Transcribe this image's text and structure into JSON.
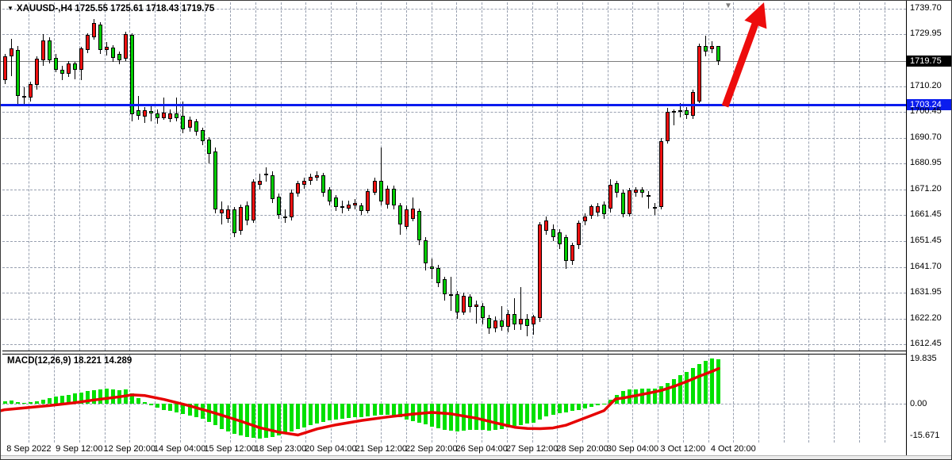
{
  "title": {
    "symbol_period": "XAUUSD-,H4",
    "ohlc": "1725.55 1725.61 1718.43 1719.75",
    "dropdown_icon": "symbol-dropdown"
  },
  "indicator": {
    "label": "MACD(12,26,9)",
    "values": "18.221 14.289"
  },
  "price_axis": {
    "current_tag": "1719.75",
    "support_tag": "1703.24",
    "ticks": [
      {
        "text": "1739.70",
        "value": 1739.7
      },
      {
        "text": "1729.95",
        "value": 1729.95
      },
      {
        "text": "1710.20",
        "value": 1710.2
      },
      {
        "text": "1700.45",
        "value": 1700.45
      },
      {
        "text": "1690.70",
        "value": 1690.7
      },
      {
        "text": "1680.95",
        "value": 1680.95
      },
      {
        "text": "1671.20",
        "value": 1671.2
      },
      {
        "text": "1661.45",
        "value": 1661.45
      },
      {
        "text": "1651.45",
        "value": 1651.45
      },
      {
        "text": "1641.70",
        "value": 1641.7
      },
      {
        "text": "1631.95",
        "value": 1631.95
      },
      {
        "text": "1622.20",
        "value": 1622.2
      },
      {
        "text": "1612.45",
        "value": 1612.45
      }
    ]
  },
  "macd_axis": {
    "ticks": [
      {
        "text": "19.835",
        "value": 19.835
      },
      {
        "text": "0.00",
        "value": 0
      },
      {
        "text": "-15.671",
        "value": -15.671
      }
    ]
  },
  "time_axis": {
    "labels": [
      "8 Sep 2022",
      "9 Sep 12:00",
      "12 Sep 20:00",
      "14 Sep 04:00",
      "15 Sep 12:00",
      "18 Sep 23:00",
      "20 Sep 04:00",
      "21 Sep 12:00",
      "22 Sep 20:00",
      "26 Sep 04:00",
      "27 Sep 12:00",
      "28 Sep 20:00",
      "30 Sep 04:00",
      "3 Oct 12:00",
      "4 Oct 20:00"
    ]
  },
  "colors": {
    "bull_candle": "#ee1111",
    "bear_candle": "#00cc00",
    "wick": "#000000",
    "macd_bar": "#00e000",
    "signal_line": "#e60000",
    "arrow": "#ed0c0c",
    "support_line": "#0a1cee",
    "current_price_line": "#7d7d7d",
    "grid": "#98a0b0",
    "background": "#ffffff",
    "current_tag_bg": "#000000",
    "support_tag_bg": "#0a1cee"
  },
  "chart_data": {
    "type": "candlestick",
    "symbol": "XAUUSD",
    "timeframe": "H4",
    "current_ohlc": {
      "open": 1725.55,
      "high": 1725.61,
      "low": 1718.43,
      "close": 1719.75
    },
    "current_price": 1719.75,
    "support_line_price": 1703.24,
    "ylim": [
      1611.0,
      1742.5
    ],
    "x_ticks": [
      "8 Sep 2022",
      "9 Sep 12:00",
      "12 Sep 20:00",
      "14 Sep 04:00",
      "15 Sep 12:00",
      "18 Sep 23:00",
      "20 Sep 04:00",
      "21 Sep 12:00",
      "22 Sep 20:00",
      "26 Sep 04:00",
      "27 Sep 12:00",
      "28 Sep 20:00",
      "30 Sep 04:00",
      "3 Oct 12:00",
      "4 Oct 20:00"
    ],
    "annotations": {
      "arrow": "large red bullish projection arrow from support line toward upper-right",
      "marker": "gray chart-shift triangle at top"
    },
    "candles": [
      [
        1712.6,
        1722.6,
        1711.0,
        1721.7
      ],
      [
        1721.7,
        1728.2,
        1714.0,
        1724.7
      ],
      [
        1724.1,
        1725.5,
        1703.6,
        1706.6
      ],
      [
        1706.6,
        1710.0,
        1703.6,
        1706.0
      ],
      [
        1706.0,
        1712.0,
        1704.5,
        1711.1
      ],
      [
        1710.9,
        1721.5,
        1709.0,
        1720.7
      ],
      [
        1720.0,
        1730.0,
        1718.0,
        1727.7
      ],
      [
        1727.7,
        1729.0,
        1719.0,
        1720.1
      ],
      [
        1721.0,
        1722.5,
        1715.5,
        1716.5
      ],
      [
        1716.5,
        1718.0,
        1712.5,
        1715.0
      ],
      [
        1715.0,
        1719.8,
        1713.8,
        1719.0
      ],
      [
        1719.0,
        1719.5,
        1713.0,
        1716.5
      ],
      [
        1716.5,
        1725.3,
        1712.6,
        1724.7
      ],
      [
        1724.0,
        1730.5,
        1723.0,
        1729.8
      ],
      [
        1729.0,
        1735.8,
        1728.0,
        1734.3
      ],
      [
        1733.7,
        1734.5,
        1722.5,
        1724.1
      ],
      [
        1724.1,
        1727.0,
        1722.0,
        1725.2
      ],
      [
        1725.0,
        1726.0,
        1719.5,
        1721.1
      ],
      [
        1722.5,
        1723.5,
        1718.5,
        1720.2
      ],
      [
        1720.7,
        1731.0,
        1719.7,
        1730.1
      ],
      [
        1729.8,
        1730.3,
        1697.0,
        1699.7
      ],
      [
        1701.2,
        1706.6,
        1697.5,
        1699.1
      ],
      [
        1698.8,
        1702.5,
        1696.5,
        1701.2
      ],
      [
        1700.8,
        1703.0,
        1697.0,
        1699.9
      ],
      [
        1699.9,
        1701.5,
        1696.0,
        1698.3
      ],
      [
        1698.3,
        1706.1,
        1697.5,
        1700.4
      ],
      [
        1698.0,
        1701.5,
        1696.8,
        1700.0
      ],
      [
        1700.0,
        1705.9,
        1697.0,
        1698.2
      ],
      [
        1699.0,
        1704.6,
        1692.5,
        1694.0
      ],
      [
        1694.6,
        1698.8,
        1693.0,
        1697.6
      ],
      [
        1697.0,
        1698.0,
        1691.5,
        1693.1
      ],
      [
        1693.7,
        1694.5,
        1688.0,
        1689.5
      ],
      [
        1690.1,
        1691.0,
        1681.0,
        1684.6
      ],
      [
        1685.5,
        1687.0,
        1662.0,
        1663.6
      ],
      [
        1662.1,
        1666.5,
        1657.9,
        1663.6
      ],
      [
        1660.0,
        1665.0,
        1658.5,
        1663.5
      ],
      [
        1663.5,
        1664.5,
        1653.1,
        1654.5
      ],
      [
        1655.5,
        1665.5,
        1654.0,
        1664.5
      ],
      [
        1665.0,
        1666.5,
        1657.5,
        1659.5
      ],
      [
        1659.5,
        1675.0,
        1658.5,
        1674.0
      ],
      [
        1673.0,
        1677.0,
        1671.0,
        1674.5
      ],
      [
        1676.5,
        1679.5,
        1674.0,
        1677.0
      ],
      [
        1676.5,
        1678.0,
        1666.0,
        1667.5
      ],
      [
        1668.5,
        1669.5,
        1660.0,
        1661.5
      ],
      [
        1661.0,
        1663.5,
        1658.5,
        1660.5
      ],
      [
        1660.5,
        1671.0,
        1659.5,
        1670.0
      ],
      [
        1669.5,
        1674.5,
        1668.5,
        1673.5
      ],
      [
        1672.8,
        1675.5,
        1671.5,
        1674.5
      ],
      [
        1674.5,
        1677.2,
        1673.0,
        1676.0
      ],
      [
        1675.5,
        1678.0,
        1674.5,
        1676.5
      ],
      [
        1676.5,
        1677.5,
        1668.5,
        1670.0
      ],
      [
        1671.0,
        1672.0,
        1665.0,
        1666.5
      ],
      [
        1668.0,
        1669.0,
        1663.0,
        1664.5
      ],
      [
        1664.8,
        1667.0,
        1662.0,
        1664.2
      ],
      [
        1664.0,
        1667.0,
        1663.0,
        1665.5
      ],
      [
        1665.0,
        1667.5,
        1663.5,
        1666.0
      ],
      [
        1665.0,
        1666.0,
        1661.5,
        1663.0
      ],
      [
        1663.0,
        1671.5,
        1662.0,
        1670.5
      ],
      [
        1670.0,
        1675.5,
        1669.0,
        1674.5
      ],
      [
        1674.5,
        1687.1,
        1665.0,
        1666.5
      ],
      [
        1665.5,
        1672.5,
        1664.0,
        1671.5
      ],
      [
        1671.5,
        1672.5,
        1663.5,
        1665.0
      ],
      [
        1665.0,
        1666.0,
        1654.0,
        1658.0
      ],
      [
        1657.0,
        1665.0,
        1656.0,
        1663.5
      ],
      [
        1660.0,
        1668.0,
        1659.0,
        1664.0
      ],
      [
        1663.0,
        1664.0,
        1650.0,
        1652.0
      ],
      [
        1652.0,
        1653.0,
        1640.5,
        1643.0
      ],
      [
        1642.0,
        1645.0,
        1637.0,
        1641.0
      ],
      [
        1641.3,
        1642.5,
        1634.0,
        1635.7
      ],
      [
        1637.0,
        1638.0,
        1629.0,
        1631.5
      ],
      [
        1631.5,
        1638.0,
        1625.0,
        1631.0
      ],
      [
        1631.4,
        1632.5,
        1622.0,
        1624.6
      ],
      [
        1624.6,
        1632.0,
        1623.5,
        1630.9
      ],
      [
        1630.5,
        1631.5,
        1624.5,
        1626.5
      ],
      [
        1626.5,
        1629.0,
        1620.2,
        1627.5
      ],
      [
        1627.0,
        1628.0,
        1620.0,
        1622.5
      ],
      [
        1622.5,
        1623.5,
        1616.5,
        1618.5
      ],
      [
        1618.5,
        1623.0,
        1617.0,
        1621.5
      ],
      [
        1621.5,
        1627.0,
        1617.5,
        1619.0
      ],
      [
        1619.0,
        1625.5,
        1617.0,
        1624.0
      ],
      [
        1624.0,
        1630.0,
        1618.0,
        1620.0
      ],
      [
        1620.0,
        1634.0,
        1618.0,
        1622.0
      ],
      [
        1622.0,
        1624.0,
        1615.5,
        1619.5
      ],
      [
        1619.9,
        1623.5,
        1615.9,
        1622.9
      ],
      [
        1622.4,
        1658.9,
        1621.0,
        1657.9
      ],
      [
        1655.5,
        1661.0,
        1654.0,
        1659.5
      ],
      [
        1656.0,
        1658.0,
        1651.5,
        1653.0
      ],
      [
        1655.0,
        1656.0,
        1648.5,
        1650.4
      ],
      [
        1653.0,
        1654.0,
        1640.9,
        1644.0
      ],
      [
        1644.0,
        1651.0,
        1642.5,
        1650.0
      ],
      [
        1649.9,
        1659.5,
        1648.5,
        1658.5
      ],
      [
        1659.0,
        1662.0,
        1657.5,
        1661.0
      ],
      [
        1661.2,
        1665.5,
        1660.0,
        1664.7
      ],
      [
        1662.4,
        1666.0,
        1661.0,
        1664.9
      ],
      [
        1665.4,
        1666.5,
        1660.0,
        1661.9
      ],
      [
        1663.9,
        1674.9,
        1662.5,
        1672.9
      ],
      [
        1673.4,
        1674.5,
        1668.0,
        1669.9
      ],
      [
        1669.9,
        1671.0,
        1660.5,
        1661.9
      ],
      [
        1661.9,
        1671.8,
        1661.0,
        1670.8
      ],
      [
        1670.0,
        1672.0,
        1668.5,
        1671.0
      ],
      [
        1671.0,
        1672.0,
        1668.0,
        1669.8
      ],
      [
        1669.0,
        1670.5,
        1664.0,
        1668.5
      ],
      [
        1663.9,
        1666.0,
        1661.5,
        1664.4
      ],
      [
        1664.5,
        1690.6,
        1663.5,
        1689.6
      ],
      [
        1689.6,
        1702.1,
        1688.5,
        1700.6
      ],
      [
        1700.2,
        1701.5,
        1695.6,
        1700.8
      ],
      [
        1700.9,
        1704.0,
        1698.5,
        1701.3
      ],
      [
        1701.3,
        1702.5,
        1698.0,
        1699.4
      ],
      [
        1699.1,
        1709.0,
        1698.0,
        1708.1
      ],
      [
        1704.6,
        1726.5,
        1703.8,
        1725.7
      ],
      [
        1725.7,
        1729.5,
        1721.5,
        1723.5
      ],
      [
        1724.5,
        1727.5,
        1723.0,
        1725.5
      ],
      [
        1725.6,
        1725.6,
        1718.4,
        1719.8
      ]
    ],
    "macd": {
      "current_macd": 18.221,
      "current_signal": 14.289,
      "range": [
        -15.671,
        19.835
      ],
      "histogram": [
        0.8,
        1.2,
        0.6,
        0.2,
        0.4,
        0.8,
        1.5,
        2.2,
        2.8,
        3.2,
        3.6,
        4.0,
        4.5,
        5.0,
        5.5,
        5.8,
        5.9,
        5.7,
        5.4,
        5.6,
        4.0,
        2.0,
        0.5,
        -0.8,
        -1.8,
        -2.6,
        -3.2,
        -3.8,
        -4.5,
        -5.0,
        -5.6,
        -6.3,
        -7.5,
        -9.0,
        -10.5,
        -11.5,
        -12.5,
        -13.2,
        -13.8,
        -14.2,
        -14.5,
        -14.3,
        -13.8,
        -13.0,
        -12.2,
        -11.4,
        -10.6,
        -9.8,
        -9.0,
        -8.2,
        -7.6,
        -7.0,
        -6.6,
        -6.3,
        -6.0,
        -5.8,
        -5.6,
        -5.3,
        -5.0,
        -4.6,
        -4.8,
        -5.2,
        -5.8,
        -6.6,
        -7.2,
        -7.8,
        -8.6,
        -9.6,
        -10.3,
        -10.8,
        -11.2,
        -11.5,
        -11.3,
        -11.0,
        -10.8,
        -10.9,
        -11.2,
        -11.0,
        -10.5,
        -10.0,
        -9.4,
        -8.8,
        -8.2,
        -7.8,
        -6.5,
        -5.5,
        -4.8,
        -4.2,
        -3.8,
        -3.2,
        -2.6,
        -2.0,
        -1.5,
        -0.8,
        -0.3,
        1.5,
        3.5,
        5.0,
        5.6,
        5.8,
        5.9,
        6.1,
        6.0,
        7.0,
        8.5,
        10.0,
        11.5,
        13.0,
        14.5,
        16.0,
        17.4,
        18.5,
        18.221
      ],
      "signal_points": [
        [
          -0.6,
          -3.0
        ],
        [
          0,
          -2.6
        ],
        [
          3,
          -1.9
        ],
        [
          7,
          -0.9
        ],
        [
          11,
          0.3
        ],
        [
          14,
          1.4
        ],
        [
          18,
          2.7
        ],
        [
          20,
          3.5
        ],
        [
          22,
          3.2
        ],
        [
          25,
          1.6
        ],
        [
          29,
          -1.0
        ],
        [
          33,
          -4.0
        ],
        [
          37,
          -7.3
        ],
        [
          40,
          -10.0
        ],
        [
          43,
          -11.8
        ],
        [
          46,
          -13.0
        ],
        [
          49,
          -10.5
        ],
        [
          52,
          -8.8
        ],
        [
          56,
          -7.0
        ],
        [
          60,
          -5.6
        ],
        [
          64,
          -4.4
        ],
        [
          67,
          -3.7
        ],
        [
          70,
          -4.3
        ],
        [
          74,
          -6.1
        ],
        [
          77,
          -8.0
        ],
        [
          80,
          -9.8
        ],
        [
          82,
          -10.3
        ],
        [
          84,
          -10.4
        ],
        [
          86,
          -10.1
        ],
        [
          88,
          -9.0
        ],
        [
          90,
          -7.0
        ],
        [
          92,
          -5.0
        ],
        [
          94,
          -3.0
        ],
        [
          95.8,
          1.8
        ],
        [
          97,
          2.2
        ],
        [
          99,
          3.2
        ],
        [
          101,
          4.2
        ],
        [
          103,
          5.3
        ],
        [
          105,
          7.0
        ],
        [
          107,
          9.0
        ],
        [
          109,
          11.2
        ],
        [
          111,
          13.2
        ],
        [
          112,
          14.3
        ]
      ]
    }
  }
}
